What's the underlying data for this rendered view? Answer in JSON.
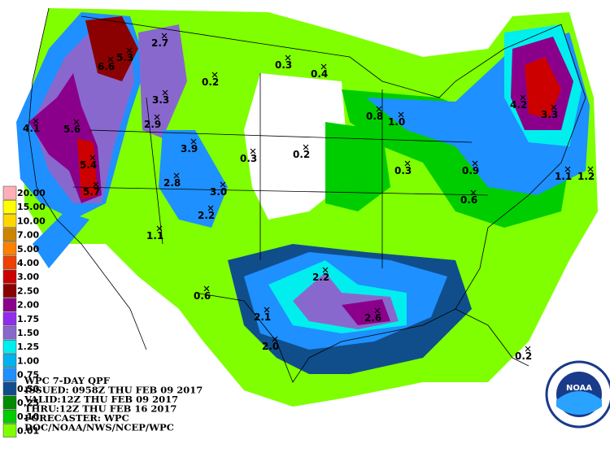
{
  "legend": {
    "items": [
      {
        "label": "20.00",
        "color": "#ffaeb9"
      },
      {
        "label": "15.00",
        "color": "#ffff00"
      },
      {
        "label": "10.00",
        "color": "#ffd700"
      },
      {
        "label": "7.00",
        "color": "#cd8500"
      },
      {
        "label": "5.00",
        "color": "#ff7f00"
      },
      {
        "label": "4.00",
        "color": "#ee4000"
      },
      {
        "label": "3.00",
        "color": "#cd0000"
      },
      {
        "label": "2.50",
        "color": "#8b0000"
      },
      {
        "label": "2.00",
        "color": "#8b008b"
      },
      {
        "label": "1.75",
        "color": "#912cee"
      },
      {
        "label": "1.50",
        "color": "#8968cd"
      },
      {
        "label": "1.25",
        "color": "#00eeee"
      },
      {
        "label": "1.00",
        "color": "#00b2ee"
      },
      {
        "label": "0.75",
        "color": "#1e90ff"
      },
      {
        "label": "0.50",
        "color": "#104e8b"
      },
      {
        "label": "0.25",
        "color": "#008b00"
      },
      {
        "label": "0.10",
        "color": "#00cd00"
      },
      {
        "label": "0.01",
        "color": "#7fff00"
      }
    ]
  },
  "info": {
    "lines": [
      "WPC 7-DAY QPF",
      "ISSUED: 0958Z THU FEB 09 2017",
      "VALID:12Z THU FEB 09 2017",
      "THRU:12Z THU FEB 16 2017",
      "FORECASTER: WPC",
      "DOC/NOAA/NWS/NCEP/WPC"
    ]
  },
  "points": [
    "0.2",
    "0.3",
    "0.4",
    "2.7",
    "6.6",
    "5.3",
    "3.3",
    "2.9",
    "3.9",
    "4.1",
    "5.6",
    "5.4",
    "5.7",
    "2.8",
    "3.0",
    "2.2",
    "1.1",
    "0.3",
    "0.2",
    "0.8",
    "1.0",
    "0.3",
    "0.9",
    "0.6",
    "4.2",
    "3.3",
    "1.1",
    "1.2",
    "2.2",
    "0.6",
    "2.1",
    "2.6",
    "2.0",
    "0.2"
  ],
  "logo": "NOAA"
}
